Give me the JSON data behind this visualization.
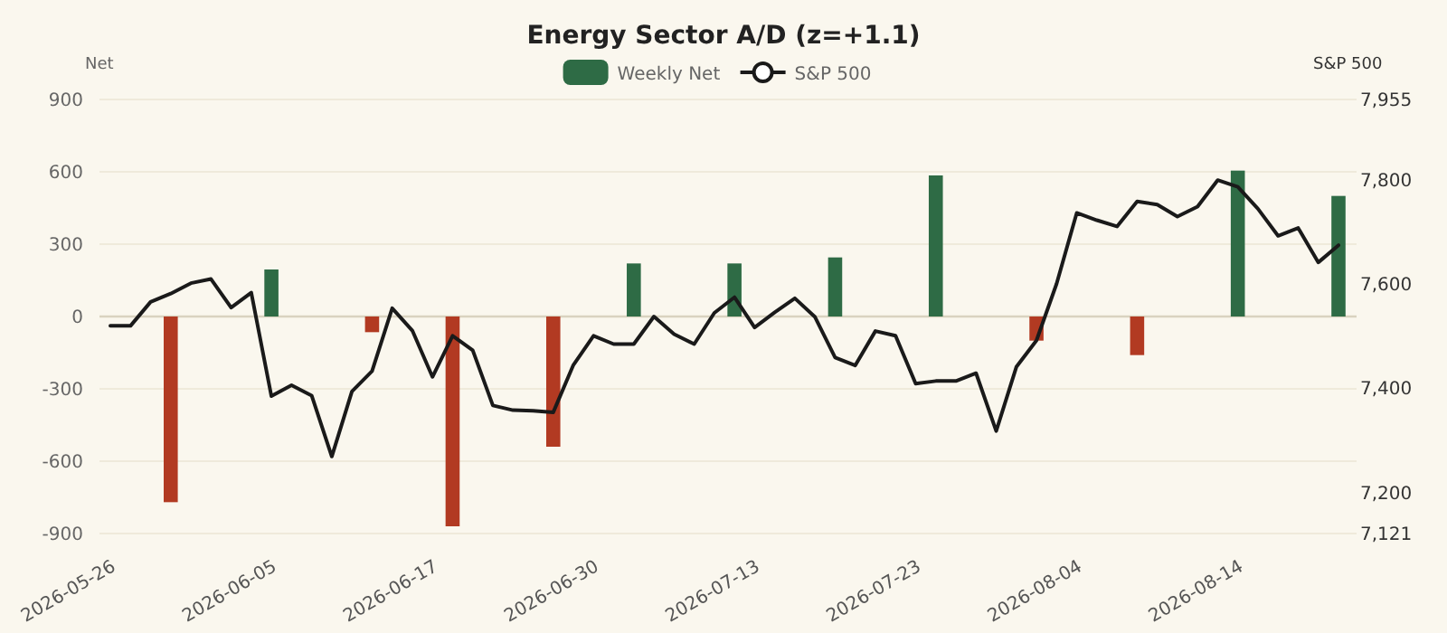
{
  "chart_data": {
    "type": "bar",
    "title": "Energy Sector A/D (z=+1.1)",
    "ylabel": "Net",
    "y2label": "S&P 500",
    "categories": [
      "2026-05-26",
      null,
      null,
      null,
      null,
      null,
      null,
      null,
      "2026-06-05",
      null,
      null,
      null,
      null,
      null,
      null,
      null,
      "2026-06-17",
      null,
      null,
      null,
      null,
      null,
      null,
      null,
      "2026-06-30",
      null,
      null,
      null,
      null,
      null,
      null,
      null,
      "2026-07-13",
      null,
      null,
      null,
      null,
      null,
      null,
      null,
      "2026-07-23",
      null,
      null,
      null,
      null,
      null,
      null,
      null,
      "2026-08-04",
      null,
      null,
      null,
      null,
      null,
      null,
      null,
      "2026-08-14",
      null,
      null,
      null,
      null,
      null
    ],
    "series": [
      {
        "name": "Weekly Net",
        "color": "#2e6b45",
        "colors": [
          null,
          null,
          null,
          "#b23a22",
          null,
          null,
          null,
          null,
          "#2e6b45",
          null,
          null,
          null,
          null,
          "#b23a22",
          null,
          null,
          null,
          "#b23a22",
          null,
          null,
          null,
          null,
          "#b23a22",
          null,
          null,
          null,
          "#2e6b45",
          null,
          null,
          null,
          null,
          "#2e6b45",
          null,
          null,
          null,
          null,
          "#2e6b45",
          null,
          null,
          null,
          null,
          "#2e6b45",
          null,
          null,
          null,
          null,
          "#b23a22",
          null,
          null,
          null,
          null,
          "#b23a22",
          null,
          null,
          null,
          null,
          "#2e6b45",
          null,
          null,
          null,
          null,
          "#2e6b45"
        ],
        "values": [
          null,
          null,
          null,
          -770,
          null,
          null,
          null,
          null,
          195,
          null,
          null,
          null,
          null,
          -65,
          null,
          null,
          null,
          -870,
          null,
          null,
          null,
          null,
          -540,
          null,
          null,
          null,
          220,
          null,
          null,
          null,
          null,
          220,
          null,
          null,
          null,
          null,
          245,
          null,
          null,
          null,
          null,
          585,
          null,
          null,
          null,
          null,
          -100,
          null,
          null,
          null,
          null,
          -160,
          null,
          null,
          null,
          null,
          605,
          null,
          null,
          null,
          null,
          500
        ]
      },
      {
        "name": "S&P 500",
        "type": "line",
        "axis": "y2",
        "color": "#1a1a1a",
        "values": [
          7520,
          7520,
          7566,
          7582,
          7602,
          7610,
          7555,
          7584,
          7385,
          7406,
          7386,
          7269,
          7394,
          7433,
          7554,
          7511,
          7422,
          7501,
          7473,
          7367,
          7358,
          7357,
          7354,
          7445,
          7501,
          7485,
          7485,
          7538,
          7504,
          7485,
          7545,
          7575,
          7517,
          7546,
          7573,
          7537,
          7459,
          7444,
          7510,
          7501,
          7409,
          7414,
          7414,
          7429,
          7318,
          7441,
          7492,
          7601,
          7737,
          7723,
          7711,
          7759,
          7753,
          7730,
          7749,
          7800,
          7787,
          7745,
          7693,
          7708,
          7642,
          7675
        ]
      }
    ],
    "ylim": [
      -900,
      900
    ],
    "yticks": [
      -900,
      -600,
      -300,
      0,
      300,
      600,
      900
    ],
    "y2lim": [
      7121,
      7955
    ],
    "y2ticks": [
      {
        "value": 7121,
        "label": "7,121"
      },
      {
        "value": 7200,
        "label": "7,200"
      },
      {
        "value": 7400,
        "label": "7,400"
      },
      {
        "value": 7600,
        "label": "7,600"
      },
      {
        "value": 7800,
        "label": "7,800"
      },
      {
        "value": 7955,
        "label": "7,955"
      }
    ],
    "grid": "y",
    "legend": "top"
  }
}
